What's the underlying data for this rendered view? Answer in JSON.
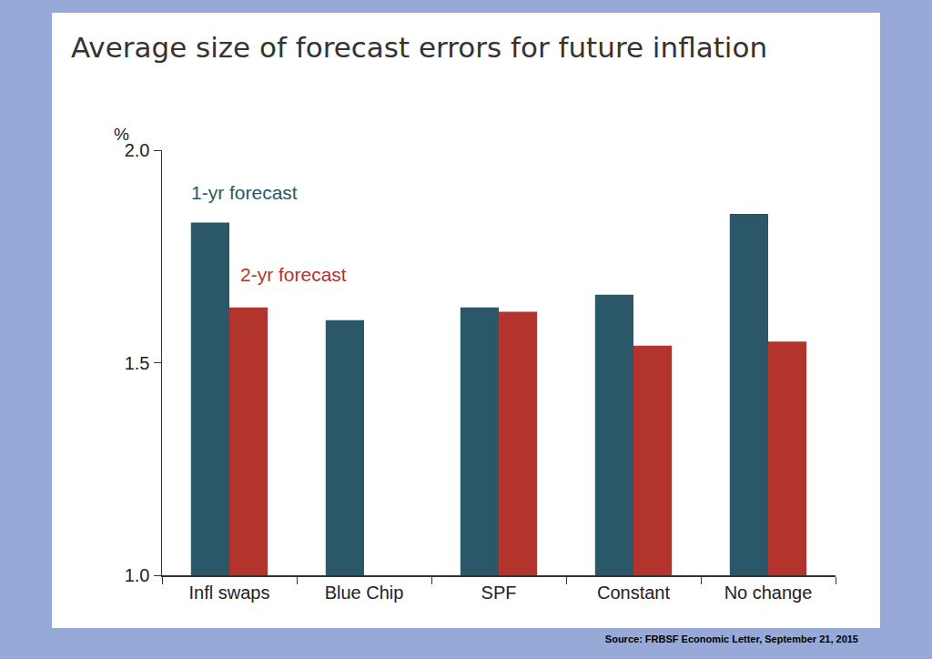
{
  "chart_data": {
    "type": "bar",
    "title": "Average size of forecast errors for future inflation",
    "y_label": "%",
    "source": "Source: FRBSF Economic Letter, September 21, 2015",
    "categories": [
      "Infl swaps",
      "Blue Chip",
      "SPF",
      "Constant",
      "No change"
    ],
    "series": [
      {
        "name": "1-yr forecast",
        "color": "#2a5868",
        "values": [
          1.83,
          1.6,
          1.63,
          1.66,
          1.85
        ]
      },
      {
        "name": "2-yr forecast",
        "color": "#b3342d",
        "values": [
          1.63,
          null,
          1.62,
          1.54,
          1.55
        ]
      }
    ],
    "ylim": [
      1.0,
      2.0
    ],
    "yticks": [
      {
        "value": 1.0,
        "label": "1.0"
      },
      {
        "value": 1.5,
        "label": "1.5"
      },
      {
        "value": 2.0,
        "label": "2.0"
      }
    ],
    "grid": false
  }
}
